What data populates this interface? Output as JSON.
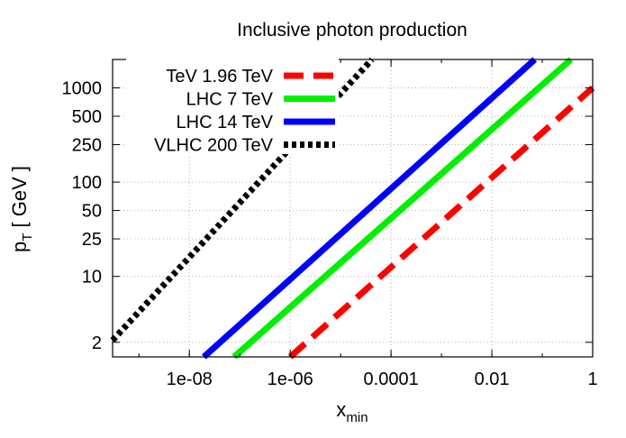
{
  "chart_data": {
    "type": "line",
    "title": "Inclusive photon production",
    "xlabel": {
      "main": "x",
      "sub": "min"
    },
    "ylabel": {
      "main": "p",
      "sub": "T",
      "rest": " [ GeV ]"
    },
    "x_scale": "log",
    "y_scale": "log",
    "xlim": [
      3e-10,
      1
    ],
    "ylim": [
      1.4,
      2000
    ],
    "x_ticks": [
      {
        "value": 1e-08,
        "label": "1e-08"
      },
      {
        "value": 1e-06,
        "label": "1e-06"
      },
      {
        "value": 0.0001,
        "label": "0.0001"
      },
      {
        "value": 0.01,
        "label": "0.01"
      },
      {
        "value": 1,
        "label": "1"
      }
    ],
    "y_ticks": [
      {
        "value": 2,
        "label": "2"
      },
      {
        "value": 10,
        "label": "10"
      },
      {
        "value": 25,
        "label": "25"
      },
      {
        "value": 50,
        "label": "50"
      },
      {
        "value": 100,
        "label": "100"
      },
      {
        "value": 250,
        "label": "250"
      },
      {
        "value": 500,
        "label": "500"
      },
      {
        "value": 1000,
        "label": "1000"
      }
    ],
    "grid": true,
    "legend_position": "top-left",
    "series": [
      {
        "name": "TeV 1.96 TeV",
        "color": "#ff0000",
        "dash": "dashed",
        "x": [
          1e-06,
          1
        ],
        "y": [
          1.4,
          1000
        ]
      },
      {
        "name": "LHC 7 TeV",
        "color": "#00ee00",
        "dash": "solid",
        "x": [
          7.7e-08,
          0.37
        ],
        "y": [
          1.4,
          2000
        ]
      },
      {
        "name": "LHC 14 TeV",
        "color": "#0000ff",
        "dash": "solid",
        "x": [
          1.94e-08,
          0.071
        ],
        "y": [
          1.4,
          2000
        ]
      },
      {
        "name": "VLHC 200 TeV",
        "color": "#000000",
        "dash": "dotted",
        "x": [
          3e-10,
          4.2e-05
        ],
        "y": [
          2.1,
          2000
        ]
      }
    ]
  }
}
